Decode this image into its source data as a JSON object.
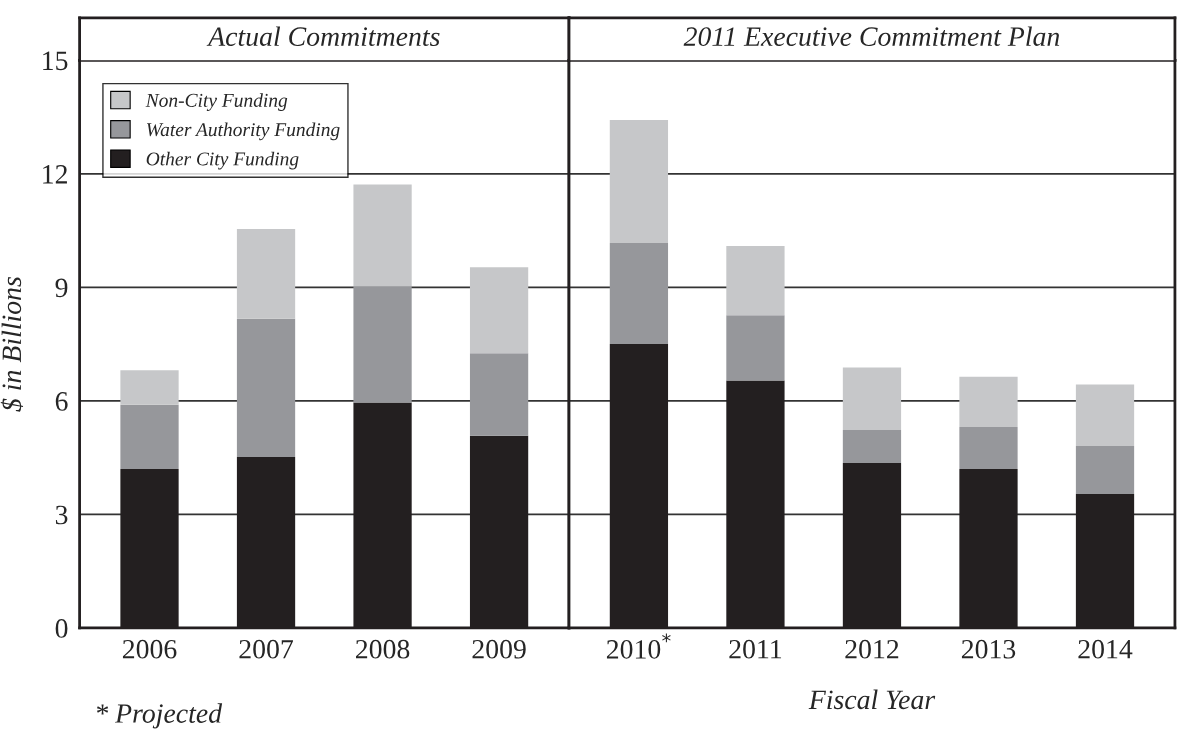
{
  "chart_data": [
    {
      "type": "bar",
      "stacked": true,
      "title": "Actual Commitments",
      "categories": [
        "2006",
        "2007",
        "2008",
        "2009"
      ],
      "series": [
        {
          "name": "Other City Funding",
          "color": "#231f20",
          "values": [
            4.2,
            4.52,
            5.96,
            5.08
          ]
        },
        {
          "name": "Water Authority Funding",
          "color": "#96979b",
          "values": [
            1.7,
            3.65,
            3.07,
            2.18
          ]
        },
        {
          "name": "Non-City Funding",
          "color": "#c6c7c9",
          "values": [
            0.91,
            2.37,
            2.69,
            2.27
          ]
        }
      ],
      "ylabel": "$ in Billions",
      "ylim": [
        0,
        15
      ],
      "yticks": [
        0,
        3,
        6,
        9,
        12,
        15
      ],
      "grid": "y",
      "legend": "top left",
      "annotations": [
        "* Projected"
      ]
    },
    {
      "type": "bar",
      "stacked": true,
      "title": "2011 Executive Commitment Plan",
      "categories": [
        "2010$^{*}$",
        "2011",
        "2012",
        "2013",
        "2014"
      ],
      "series": [
        {
          "color": "#231f20",
          "values": [
            7.5,
            6.54,
            4.36,
            4.2,
            3.54
          ]
        },
        {
          "color": "#96979b",
          "values": [
            2.67,
            1.72,
            0.87,
            1.11,
            1.27
          ]
        },
        {
          "color": "#c6c7c9",
          "values": [
            3.25,
            1.83,
            1.65,
            1.33,
            1.62
          ]
        }
      ],
      "xlabel": "Fiscal Year",
      "ylim": [
        0,
        15
      ],
      "yticks": [
        0,
        3,
        6,
        9,
        12,
        15
      ],
      "grid": "y",
      "tick_labels": "x"
    }
  ]
}
